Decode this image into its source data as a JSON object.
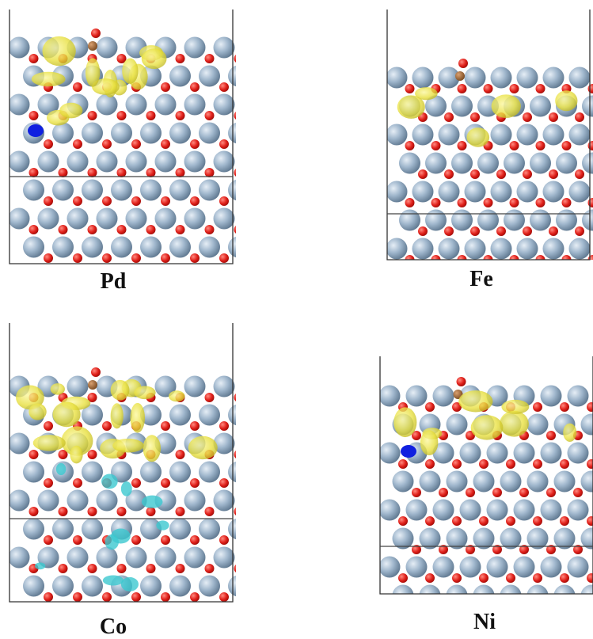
{
  "panels": [
    {
      "label": "Pd"
    },
    {
      "label": "Fe"
    },
    {
      "label": "Co"
    },
    {
      "label": "Ni"
    }
  ]
}
